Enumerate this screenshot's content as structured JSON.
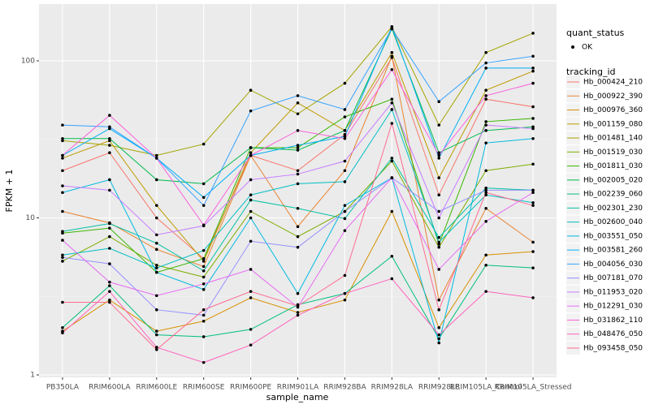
{
  "chart_data": {
    "type": "line",
    "y_scale": "log",
    "grid": true,
    "x_label": "sample_name",
    "y_label": "FPKM + 1",
    "categories": [
      "PB350LA",
      "RRIM600LA",
      "RRIM600LE",
      "RRIM600SE",
      "RRIM600PE",
      "RRIM901LA",
      "RRIM928BA",
      "RRIM928LA",
      "RRIM928LE",
      "RRIM105LA_Control",
      "RRIM105LA_Stressed"
    ],
    "ylim": [
      0.965,
      230
    ],
    "yticks": [
      1,
      10,
      100
    ],
    "point_color": "#000000",
    "point_legend": {
      "title": "quant_status",
      "label": "OK"
    },
    "legend_title": "tracking_id",
    "series": [
      {
        "name": "Hb_000424_210",
        "color": "#F8766D",
        "values": [
          20,
          26,
          10,
          5.5,
          25,
          20,
          34,
          105,
          14,
          57,
          51
        ]
      },
      {
        "name": "Hb_000922_390",
        "color": "#EA8331",
        "values": [
          11,
          9.3,
          6.3,
          4.9,
          25,
          8.8,
          20,
          107,
          3.0,
          11.5,
          7.0
        ]
      },
      {
        "name": "Hb_000976_360",
        "color": "#D89000",
        "values": [
          1.9,
          3.0,
          1.9,
          2.2,
          3.1,
          2.5,
          3.0,
          11,
          2.0,
          5.8,
          6.1
        ]
      },
      {
        "name": "Hb_001159_080",
        "color": "#C09B00",
        "values": [
          24,
          31,
          12,
          5.3,
          26,
          54,
          36,
          113,
          18,
          65,
          86
        ]
      },
      {
        "name": "Hb_001481_140",
        "color": "#A3A500",
        "values": [
          31,
          29,
          25,
          29.5,
          65,
          46,
          72,
          165,
          39,
          113,
          150
        ]
      },
      {
        "name": "Hb_001519_030",
        "color": "#7CAE00",
        "values": [
          5.3,
          7.6,
          5.0,
          4.2,
          11,
          7.6,
          11,
          23,
          6.5,
          20,
          22
        ]
      },
      {
        "name": "Hb_001811_030",
        "color": "#39B600",
        "values": [
          8.0,
          8.6,
          4.5,
          5.5,
          28,
          28,
          44,
          57,
          6.8,
          41,
          43
        ]
      },
      {
        "name": "Hb_002005_020",
        "color": "#00BB4E",
        "values": [
          32,
          32,
          17.5,
          16.5,
          28,
          27,
          36,
          160,
          26,
          36,
          38
        ]
      },
      {
        "name": "Hb_002239_060",
        "color": "#00BF7D",
        "values": [
          2.0,
          3.7,
          1.8,
          1.75,
          1.95,
          2.8,
          3.3,
          5.7,
          1.7,
          5.0,
          4.8
        ]
      },
      {
        "name": "Hb_002301_230",
        "color": "#00C1A3",
        "values": [
          8.2,
          9.2,
          6.9,
          4.6,
          13,
          11.5,
          9.9,
          24,
          7.5,
          15.5,
          15
        ]
      },
      {
        "name": "Hb_002600_040",
        "color": "#00BFC4",
        "values": [
          5.8,
          6.4,
          4.8,
          6.2,
          14,
          16.5,
          17,
          49,
          7.0,
          14,
          12.5
        ]
      },
      {
        "name": "Hb_003551_050",
        "color": "#00BAE0",
        "values": [
          14.5,
          17.5,
          4.5,
          3.5,
          10,
          3.3,
          12,
          18,
          1.6,
          30,
          32
        ]
      },
      {
        "name": "Hb_003581_260",
        "color": "#00B0F6",
        "values": [
          25,
          37,
          24,
          13.5,
          25,
          29,
          33,
          165,
          24,
          90,
          90
        ]
      },
      {
        "name": "Hb_004056_030",
        "color": "#35A2FF",
        "values": [
          39,
          38,
          24,
          12,
          48,
          60,
          49,
          160,
          55,
          97,
          107
        ]
      },
      {
        "name": "Hb_007181_070",
        "color": "#9590FF",
        "values": [
          5.6,
          5.1,
          2.6,
          2.4,
          7.1,
          6.5,
          11,
          18,
          11,
          15,
          15
        ]
      },
      {
        "name": "Hb_011953_020",
        "color": "#C77CFF",
        "values": [
          16,
          15,
          7.8,
          8.9,
          17.5,
          19,
          23,
          54,
          10,
          39,
          37
        ]
      },
      {
        "name": "Hb_012291_030",
        "color": "#E76BF3",
        "values": [
          7.2,
          3.9,
          3.2,
          3.8,
          4.7,
          2.7,
          8.3,
          18,
          4.7,
          9.5,
          14.5
        ]
      },
      {
        "name": "Hb_031862_110",
        "color": "#FA62DB",
        "values": [
          25,
          45,
          24,
          9,
          25,
          36,
          32,
          88,
          25,
          60,
          72
        ]
      },
      {
        "name": "Hb_048476_050",
        "color": "#FF62BC",
        "values": [
          1.85,
          3.4,
          1.5,
          1.2,
          1.55,
          2.4,
          3.3,
          4.1,
          1.8,
          3.4,
          3.1
        ]
      },
      {
        "name": "Hb_093458_050",
        "color": "#FF6C91",
        "values": [
          2.9,
          2.9,
          1.45,
          2.6,
          3.4,
          2.75,
          4.3,
          40,
          2.6,
          14.5,
          12
        ]
      }
    ]
  }
}
